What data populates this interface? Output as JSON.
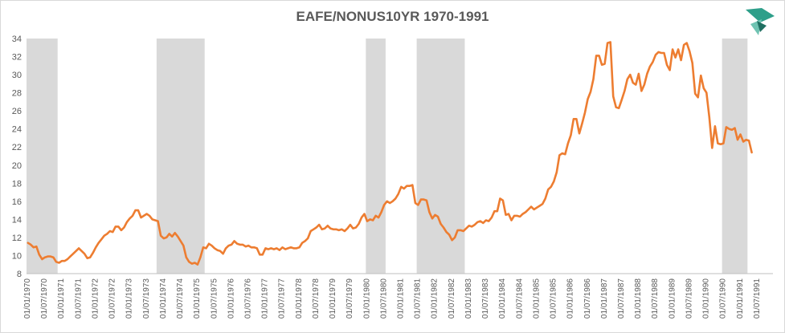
{
  "chart_data": {
    "type": "line",
    "title": "EAFE/NONUS10YR 1970-1991",
    "xlabel": "",
    "ylabel": "",
    "ylim": [
      8,
      34
    ],
    "yticks": [
      8,
      10,
      12,
      14,
      16,
      18,
      20,
      22,
      24,
      26,
      28,
      30,
      32,
      34
    ],
    "x_start": "1970-01",
    "x_end": "1991-12",
    "xtick_labels": [
      "01/01/1970",
      "01/07/1970",
      "01/01/1971",
      "01/07/1971",
      "01/01/1972",
      "01/07/1972",
      "01/01/1973",
      "01/07/1973",
      "01/01/1974",
      "01/07/1974",
      "01/01/1975",
      "01/07/1975",
      "01/01/1976",
      "01/07/1976",
      "01/01/1977",
      "01/07/1977",
      "01/01/1978",
      "01/07/1978",
      "01/01/1979",
      "01/07/1979",
      "01/01/1980",
      "01/07/1980",
      "01/01/1981",
      "01/07/1981",
      "01/01/1982",
      "01/07/1982",
      "01/01/1983",
      "01/07/1983",
      "01/01/1984",
      "01/07/1984",
      "01/01/1985",
      "01/07/1985",
      "01/01/1986",
      "01/07/1986",
      "01/01/1987",
      "01/07/1987",
      "01/01/1988",
      "01/07/1988",
      "01/01/1989",
      "01/07/1989",
      "01/01/1990",
      "01/07/1990",
      "01/01/1991",
      "01/07/1991"
    ],
    "recession_bands": [
      {
        "start": "1970-01",
        "end": "1970-11"
      },
      {
        "start": "1973-11",
        "end": "1975-03"
      },
      {
        "start": "1980-01",
        "end": "1980-07"
      },
      {
        "start": "1981-07",
        "end": "1982-11"
      },
      {
        "start": "1990-07",
        "end": "1991-03"
      }
    ],
    "series": [
      {
        "name": "EAFE/NONUS10YR",
        "color": "#ed7d31",
        "points": [
          [
            "1970-01",
            11.4
          ],
          [
            "1970-02",
            11.2
          ],
          [
            "1970-03",
            10.9
          ],
          [
            "1970-04",
            11.0
          ],
          [
            "1970-05",
            10.1
          ],
          [
            "1970-06",
            9.6
          ],
          [
            "1970-07",
            9.8
          ],
          [
            "1970-08",
            9.9
          ],
          [
            "1970-09",
            9.9
          ],
          [
            "1970-10",
            9.8
          ],
          [
            "1970-11",
            9.3
          ],
          [
            "1970-12",
            9.2
          ],
          [
            "1971-01",
            9.4
          ],
          [
            "1971-02",
            9.4
          ],
          [
            "1971-03",
            9.6
          ],
          [
            "1971-04",
            9.9
          ],
          [
            "1971-05",
            10.2
          ],
          [
            "1971-06",
            10.5
          ],
          [
            "1971-07",
            10.8
          ],
          [
            "1971-08",
            10.5
          ],
          [
            "1971-09",
            10.2
          ],
          [
            "1971-10",
            9.7
          ],
          [
            "1971-11",
            9.8
          ],
          [
            "1971-12",
            10.3
          ],
          [
            "1972-01",
            10.9
          ],
          [
            "1972-02",
            11.4
          ],
          [
            "1972-03",
            11.8
          ],
          [
            "1972-04",
            12.2
          ],
          [
            "1972-05",
            12.4
          ],
          [
            "1972-06",
            12.7
          ],
          [
            "1972-07",
            12.6
          ],
          [
            "1972-08",
            13.2
          ],
          [
            "1972-09",
            13.2
          ],
          [
            "1972-10",
            12.8
          ],
          [
            "1972-11",
            13.1
          ],
          [
            "1972-12",
            13.7
          ],
          [
            "1973-01",
            14.1
          ],
          [
            "1973-02",
            14.4
          ],
          [
            "1973-03",
            15.0
          ],
          [
            "1973-04",
            15.0
          ],
          [
            "1973-05",
            14.2
          ],
          [
            "1973-06",
            14.4
          ],
          [
            "1973-07",
            14.6
          ],
          [
            "1973-08",
            14.4
          ],
          [
            "1973-09",
            14.0
          ],
          [
            "1973-10",
            13.9
          ],
          [
            "1973-11",
            13.8
          ],
          [
            "1973-12",
            12.2
          ],
          [
            "1974-01",
            11.9
          ],
          [
            "1974-02",
            12.0
          ],
          [
            "1974-03",
            12.4
          ],
          [
            "1974-04",
            12.1
          ],
          [
            "1974-05",
            12.5
          ],
          [
            "1974-06",
            12.1
          ],
          [
            "1974-07",
            11.6
          ],
          [
            "1974-08",
            11.1
          ],
          [
            "1974-09",
            9.8
          ],
          [
            "1974-10",
            9.3
          ],
          [
            "1974-11",
            9.1
          ],
          [
            "1974-12",
            9.2
          ],
          [
            "1975-01",
            9.0
          ],
          [
            "1975-02",
            9.8
          ],
          [
            "1975-03",
            10.9
          ],
          [
            "1975-04",
            10.8
          ],
          [
            "1975-05",
            11.3
          ],
          [
            "1975-06",
            11.1
          ],
          [
            "1975-07",
            10.8
          ],
          [
            "1975-08",
            10.6
          ],
          [
            "1975-09",
            10.5
          ],
          [
            "1975-10",
            10.2
          ],
          [
            "1975-11",
            10.8
          ],
          [
            "1975-12",
            11.1
          ],
          [
            "1976-01",
            11.2
          ],
          [
            "1976-02",
            11.6
          ],
          [
            "1976-03",
            11.3
          ],
          [
            "1976-04",
            11.2
          ],
          [
            "1976-05",
            11.2
          ],
          [
            "1976-06",
            11.0
          ],
          [
            "1976-07",
            11.1
          ],
          [
            "1976-08",
            10.9
          ],
          [
            "1976-09",
            10.9
          ],
          [
            "1976-10",
            10.8
          ],
          [
            "1976-11",
            10.1
          ],
          [
            "1976-12",
            10.1
          ],
          [
            "1977-01",
            10.8
          ],
          [
            "1977-02",
            10.7
          ],
          [
            "1977-03",
            10.8
          ],
          [
            "1977-04",
            10.7
          ],
          [
            "1977-05",
            10.8
          ],
          [
            "1977-06",
            10.6
          ],
          [
            "1977-07",
            10.9
          ],
          [
            "1977-08",
            10.7
          ],
          [
            "1977-09",
            10.8
          ],
          [
            "1977-10",
            10.9
          ],
          [
            "1977-11",
            10.8
          ],
          [
            "1977-12",
            10.8
          ],
          [
            "1978-01",
            10.9
          ],
          [
            "1978-02",
            11.4
          ],
          [
            "1978-03",
            11.6
          ],
          [
            "1978-04",
            11.9
          ],
          [
            "1978-05",
            12.7
          ],
          [
            "1978-06",
            12.9
          ],
          [
            "1978-07",
            13.1
          ],
          [
            "1978-08",
            13.4
          ],
          [
            "1978-09",
            12.9
          ],
          [
            "1978-10",
            13.0
          ],
          [
            "1978-11",
            13.3
          ],
          [
            "1978-12",
            13.0
          ],
          [
            "1979-01",
            12.9
          ],
          [
            "1979-02",
            12.9
          ],
          [
            "1979-03",
            12.8
          ],
          [
            "1979-04",
            12.9
          ],
          [
            "1979-05",
            12.7
          ],
          [
            "1979-06",
            13.0
          ],
          [
            "1979-07",
            13.4
          ],
          [
            "1979-08",
            13.0
          ],
          [
            "1979-09",
            13.1
          ],
          [
            "1979-10",
            13.5
          ],
          [
            "1979-11",
            14.2
          ],
          [
            "1979-12",
            14.6
          ],
          [
            "1980-01",
            13.8
          ],
          [
            "1980-02",
            14.0
          ],
          [
            "1980-03",
            13.9
          ],
          [
            "1980-04",
            14.4
          ],
          [
            "1980-05",
            14.2
          ],
          [
            "1980-06",
            14.8
          ],
          [
            "1980-07",
            15.6
          ],
          [
            "1980-08",
            16.0
          ],
          [
            "1980-09",
            15.8
          ],
          [
            "1980-10",
            16.0
          ],
          [
            "1980-11",
            16.3
          ],
          [
            "1980-12",
            16.8
          ],
          [
            "1981-01",
            17.6
          ],
          [
            "1981-02",
            17.4
          ],
          [
            "1981-03",
            17.7
          ],
          [
            "1981-04",
            17.7
          ],
          [
            "1981-05",
            17.8
          ],
          [
            "1981-06",
            15.8
          ],
          [
            "1981-07",
            15.6
          ],
          [
            "1981-08",
            16.2
          ],
          [
            "1981-09",
            16.2
          ],
          [
            "1981-10",
            16.1
          ],
          [
            "1981-11",
            14.8
          ],
          [
            "1981-12",
            14.1
          ],
          [
            "1982-01",
            14.5
          ],
          [
            "1982-02",
            14.3
          ],
          [
            "1982-03",
            13.5
          ],
          [
            "1982-04",
            13.1
          ],
          [
            "1982-05",
            12.6
          ],
          [
            "1982-06",
            12.3
          ],
          [
            "1982-07",
            11.7
          ],
          [
            "1982-08",
            12.0
          ],
          [
            "1982-09",
            12.8
          ],
          [
            "1982-10",
            12.8
          ],
          [
            "1982-11",
            12.7
          ],
          [
            "1982-12",
            13.0
          ],
          [
            "1983-01",
            13.3
          ],
          [
            "1983-02",
            13.2
          ],
          [
            "1983-03",
            13.4
          ],
          [
            "1983-04",
            13.7
          ],
          [
            "1983-05",
            13.8
          ],
          [
            "1983-06",
            13.6
          ],
          [
            "1983-07",
            13.9
          ],
          [
            "1983-08",
            13.8
          ],
          [
            "1983-09",
            14.2
          ],
          [
            "1983-10",
            14.9
          ],
          [
            "1983-11",
            14.9
          ],
          [
            "1983-12",
            16.3
          ],
          [
            "1984-01",
            16.1
          ],
          [
            "1984-02",
            14.5
          ],
          [
            "1984-03",
            14.6
          ],
          [
            "1984-04",
            13.9
          ],
          [
            "1984-05",
            14.4
          ],
          [
            "1984-06",
            14.4
          ],
          [
            "1984-07",
            14.3
          ],
          [
            "1984-08",
            14.6
          ],
          [
            "1984-09",
            14.8
          ],
          [
            "1984-10",
            15.1
          ],
          [
            "1984-11",
            15.4
          ],
          [
            "1984-12",
            15.1
          ],
          [
            "1985-01",
            15.3
          ],
          [
            "1985-02",
            15.5
          ],
          [
            "1985-03",
            15.7
          ],
          [
            "1985-04",
            16.3
          ],
          [
            "1985-05",
            17.3
          ],
          [
            "1985-06",
            17.6
          ],
          [
            "1985-07",
            18.2
          ],
          [
            "1985-08",
            19.2
          ],
          [
            "1985-09",
            21.1
          ],
          [
            "1985-10",
            21.3
          ],
          [
            "1985-11",
            21.2
          ],
          [
            "1985-12",
            22.4
          ],
          [
            "1986-01",
            23.3
          ],
          [
            "1986-02",
            25.1
          ],
          [
            "1986-03",
            25.1
          ],
          [
            "1986-04",
            23.5
          ],
          [
            "1986-05",
            24.6
          ],
          [
            "1986-06",
            25.8
          ],
          [
            "1986-07",
            27.3
          ],
          [
            "1986-08",
            28.1
          ],
          [
            "1986-09",
            29.5
          ],
          [
            "1986-10",
            32.1
          ],
          [
            "1986-11",
            32.1
          ],
          [
            "1986-12",
            31.1
          ],
          [
            "1987-01",
            31.2
          ],
          [
            "1987-02",
            33.5
          ],
          [
            "1987-03",
            33.6
          ],
          [
            "1987-04",
            27.6
          ],
          [
            "1987-05",
            26.4
          ],
          [
            "1987-06",
            26.3
          ],
          [
            "1987-07",
            27.2
          ],
          [
            "1987-08",
            28.2
          ],
          [
            "1987-09",
            29.5
          ],
          [
            "1987-10",
            30.0
          ],
          [
            "1987-11",
            29.1
          ],
          [
            "1987-12",
            28.9
          ],
          [
            "1988-01",
            30.1
          ],
          [
            "1988-02",
            28.2
          ],
          [
            "1988-03",
            28.9
          ],
          [
            "1988-04",
            30.1
          ],
          [
            "1988-05",
            30.9
          ],
          [
            "1988-06",
            31.4
          ],
          [
            "1988-07",
            32.2
          ],
          [
            "1988-08",
            32.5
          ],
          [
            "1988-09",
            32.4
          ],
          [
            "1988-10",
            32.4
          ],
          [
            "1988-11",
            31.1
          ],
          [
            "1988-12",
            30.5
          ],
          [
            "1989-01",
            32.8
          ],
          [
            "1989-02",
            31.9
          ],
          [
            "1989-03",
            32.8
          ],
          [
            "1989-04",
            31.6
          ],
          [
            "1989-05",
            33.3
          ],
          [
            "1989-06",
            33.5
          ],
          [
            "1989-07",
            32.6
          ],
          [
            "1989-08",
            31.3
          ],
          [
            "1989-09",
            27.9
          ],
          [
            "1989-10",
            27.5
          ],
          [
            "1989-11",
            29.9
          ],
          [
            "1989-12",
            28.5
          ],
          [
            "1990-01",
            28.0
          ],
          [
            "1990-02",
            25.3
          ],
          [
            "1990-03",
            21.9
          ],
          [
            "1990-04",
            24.3
          ],
          [
            "1990-05",
            22.4
          ],
          [
            "1990-06",
            22.3
          ],
          [
            "1990-07",
            22.4
          ],
          [
            "1990-08",
            24.2
          ],
          [
            "1990-09",
            24.0
          ],
          [
            "1990-10",
            23.9
          ],
          [
            "1990-11",
            24.1
          ],
          [
            "1990-12",
            22.8
          ],
          [
            "1991-01",
            23.4
          ],
          [
            "1991-02",
            22.6
          ],
          [
            "1991-03",
            22.8
          ],
          [
            "1991-04",
            22.7
          ],
          [
            "1991-05",
            21.4
          ]
        ]
      }
    ]
  }
}
